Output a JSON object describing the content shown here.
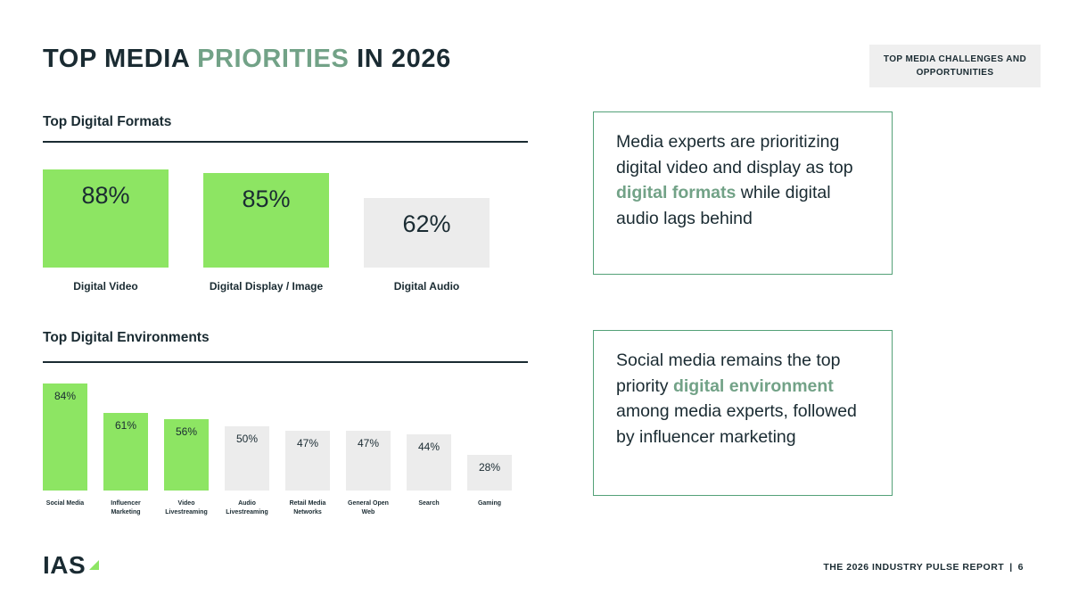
{
  "title": {
    "part1": "TOP MEDIA ",
    "part2": "PRIORITIES",
    "part3": " IN 2026"
  },
  "badge": {
    "label": "TOP MEDIA CHALLENGES AND OPPORTUNITIES"
  },
  "chart_data": [
    {
      "type": "bar",
      "title": "Top Digital Formats",
      "categories": [
        "Digital Video",
        "Digital Display / Image",
        "Digital Audio"
      ],
      "values": [
        88,
        85,
        62
      ],
      "unit": "%",
      "ylim": [
        0,
        100
      ],
      "highlighted": [
        true,
        true,
        false
      ],
      "legend": "none",
      "grid": false
    },
    {
      "type": "bar",
      "title": "Top Digital Environments",
      "categories": [
        "Social Media",
        "Influencer Marketing",
        "Video Livestreaming",
        "Audio Livestreaming",
        "Retail Media Networks",
        "General Open Web",
        "Search",
        "Gaming"
      ],
      "values": [
        84,
        61,
        56,
        50,
        47,
        47,
        44,
        28
      ],
      "unit": "%",
      "ylim": [
        0,
        100
      ],
      "highlighted": [
        true,
        true,
        true,
        false,
        false,
        false,
        false,
        false
      ],
      "legend": "none",
      "grid": false
    }
  ],
  "callouts": [
    {
      "before": "Media experts are prioritizing digital video and display as top ",
      "highlight": "digital formats",
      "after": " while digital audio lags behind"
    },
    {
      "before": "Social media remains the top priority ",
      "highlight": "digital environment",
      "after": " among media experts, followed by influencer marketing"
    }
  ],
  "footer": {
    "logo": "IAS",
    "report_title": "THE 2026 INDUSTRY PULSE REPORT",
    "separator": "|",
    "page_number": "6"
  },
  "colors": {
    "bar_highlight_green": "#8de563",
    "bar_gray": "#ececec",
    "accent_green_text": "#72a287",
    "callout_border_green": "#54a178",
    "dark_text": "#1a2b32",
    "badge_background": "#efefef"
  }
}
